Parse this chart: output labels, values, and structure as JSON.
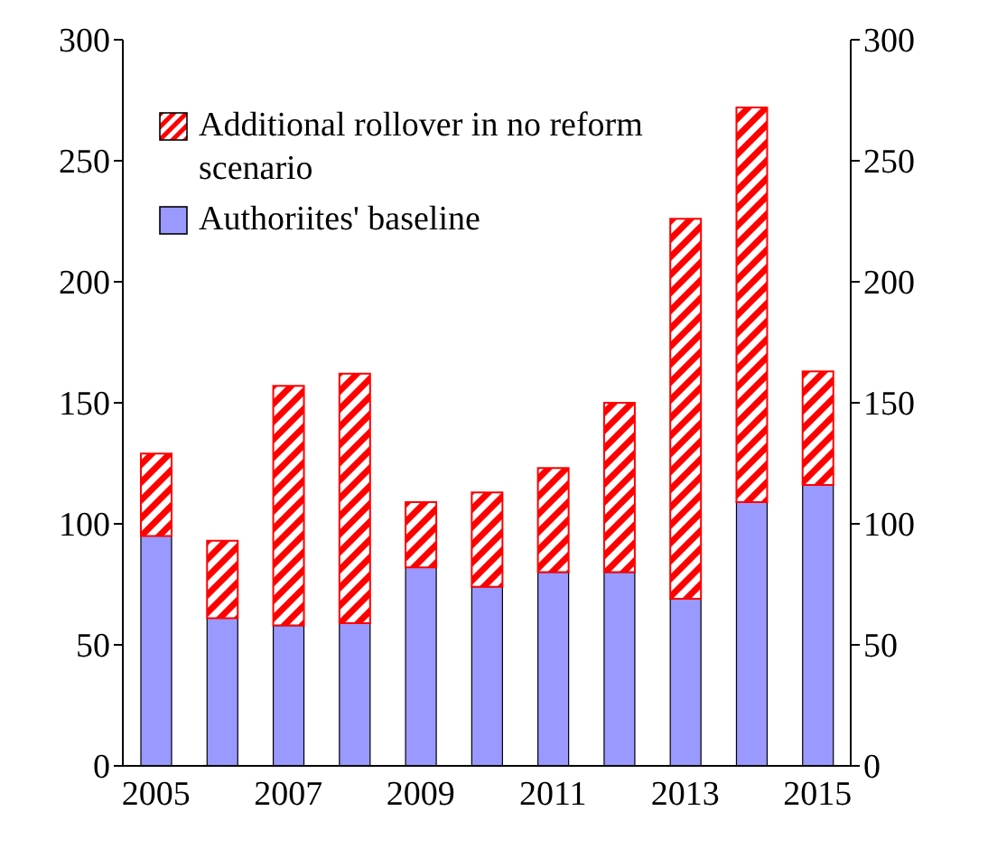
{
  "chart_data": {
    "type": "bar",
    "stacked": true,
    "categories": [
      "2005",
      null,
      "2007",
      null,
      "2009",
      null,
      "2011",
      null,
      "2013",
      null,
      "2015"
    ],
    "series": [
      {
        "name": "Authoriites' baseline",
        "color": "#9999ff",
        "values": [
          95,
          61,
          58,
          59,
          82,
          74,
          80,
          80,
          69,
          109,
          116
        ]
      },
      {
        "name": "Additional rollover in no reform scenario",
        "color": "#ff0000",
        "values": [
          34,
          32,
          99,
          103,
          27,
          39,
          43,
          70,
          157,
          163,
          47
        ]
      }
    ],
    "ylim": [
      0,
      300
    ],
    "yticks": [
      0,
      50,
      100,
      150,
      200,
      250,
      300
    ],
    "y2lim": [
      0,
      300
    ],
    "y2ticks": [
      0,
      50,
      100,
      150,
      200,
      250,
      300
    ],
    "legend": "top left"
  }
}
